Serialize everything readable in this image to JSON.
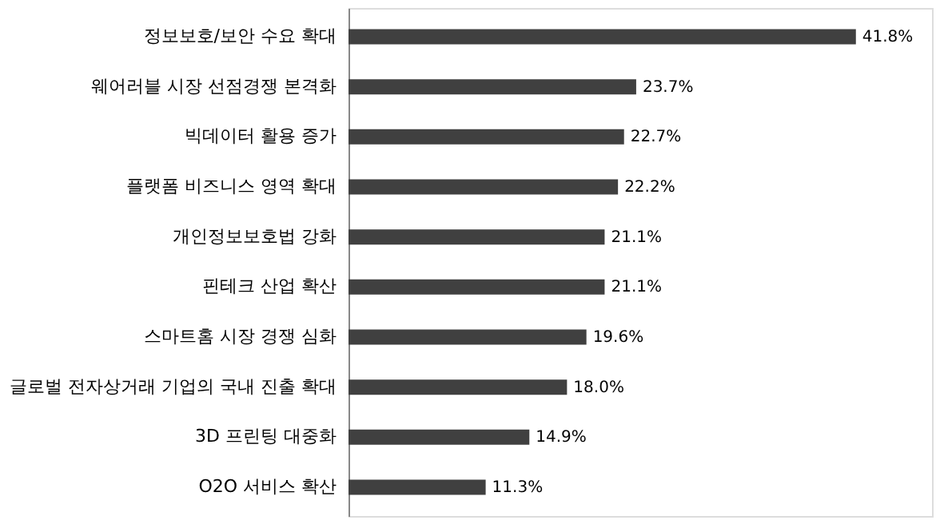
{
  "chart_data": {
    "type": "bar",
    "orientation": "horizontal",
    "categories": [
      "정보보호/보안 수요 확대",
      "웨어러블 시장 선점경쟁 본격화",
      "빅데이터 활용 증가",
      "플랫폼 비즈니스 영역 확대",
      "개인정보보호법 강화",
      "핀테크 산업 확산",
      "스마트홈 시장 경쟁 심화",
      "글로벌 전자상거래 기업의 국내 진출 확대",
      "3D 프린팅 대중화",
      "O2O 서비스 확산"
    ],
    "values": [
      41.8,
      23.7,
      22.7,
      22.2,
      21.1,
      21.1,
      19.6,
      18.0,
      14.9,
      11.3
    ],
    "value_labels": [
      "41.8%",
      "23.7%",
      "22.7%",
      "22.2%",
      "21.1%",
      "21.1%",
      "19.6%",
      "18.0%",
      "14.9%",
      "11.3%"
    ],
    "color": "#404040"
  }
}
